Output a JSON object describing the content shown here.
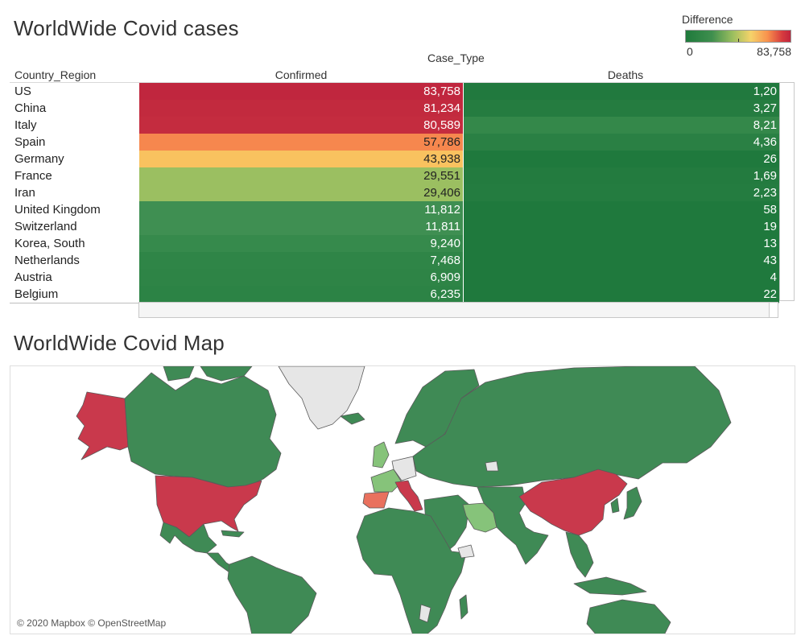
{
  "table_title": "WorldWide Covid cases",
  "map_title": "WorldWide Covid Map",
  "legend": {
    "title": "Difference",
    "min": "0",
    "max": "83,758"
  },
  "table": {
    "column_group": "Case_Type",
    "row_header": "Country_Region",
    "columns": [
      "Confirmed",
      "Deaths"
    ],
    "rows": [
      {
        "country": "US",
        "confirmed": "83,758",
        "deaths": "1,20",
        "confirmed_color": "#c0263e",
        "deaths_color": "#21793e"
      },
      {
        "country": "China",
        "confirmed": "81,234",
        "deaths": "3,27",
        "confirmed_color": "#c22a3e",
        "deaths_color": "#257c40"
      },
      {
        "country": "Italy",
        "confirmed": "80,589",
        "deaths": "8,21",
        "confirmed_color": "#c42c3f",
        "deaths_color": "#34884a"
      },
      {
        "country": "Spain",
        "confirmed": "57,786",
        "deaths": "4,36",
        "confirmed_color": "#f6874e",
        "deaths_color": "#2a8044"
      },
      {
        "country": "Germany",
        "confirmed": "43,938",
        "deaths": "26",
        "confirmed_color": "#f9c25f",
        "deaths_color": "#1f793d"
      },
      {
        "country": "France",
        "confirmed": "29,551",
        "deaths": "1,69",
        "confirmed_color": "#9bbf61",
        "deaths_color": "#237b3f"
      },
      {
        "country": "Iran",
        "confirmed": "29,406",
        "deaths": "2,23",
        "confirmed_color": "#9bbf61",
        "deaths_color": "#247c40"
      },
      {
        "country": "United Kingdom",
        "confirmed": "11,812",
        "deaths": "58",
        "confirmed_color": "#3f8f52",
        "deaths_color": "#1f793d"
      },
      {
        "country": "Switzerland",
        "confirmed": "11,811",
        "deaths": "19",
        "confirmed_color": "#3f8f52",
        "deaths_color": "#1f793d"
      },
      {
        "country": "Korea, South",
        "confirmed": "9,240",
        "deaths": "13",
        "confirmed_color": "#368a4c",
        "deaths_color": "#1f793d"
      },
      {
        "country": "Netherlands",
        "confirmed": "7,468",
        "deaths": "43",
        "confirmed_color": "#2f8547",
        "deaths_color": "#1f793d"
      },
      {
        "country": "Austria",
        "confirmed": "6,909",
        "deaths": "4",
        "confirmed_color": "#2e8446",
        "deaths_color": "#1f793d"
      },
      {
        "country": "Belgium",
        "confirmed": "6,235",
        "deaths": "22",
        "confirmed_color": "#2c8345",
        "deaths_color": "#1f793d"
      }
    ]
  },
  "map": {
    "attribution": "© 2020 Mapbox © OpenStreetMap",
    "colors": {
      "high": "#c9394c",
      "mid": "#e9715e",
      "low": "#86c37a",
      "base": "#3f8a55",
      "none": "#e6e6e6",
      "border": "#5a5a5a"
    }
  }
}
